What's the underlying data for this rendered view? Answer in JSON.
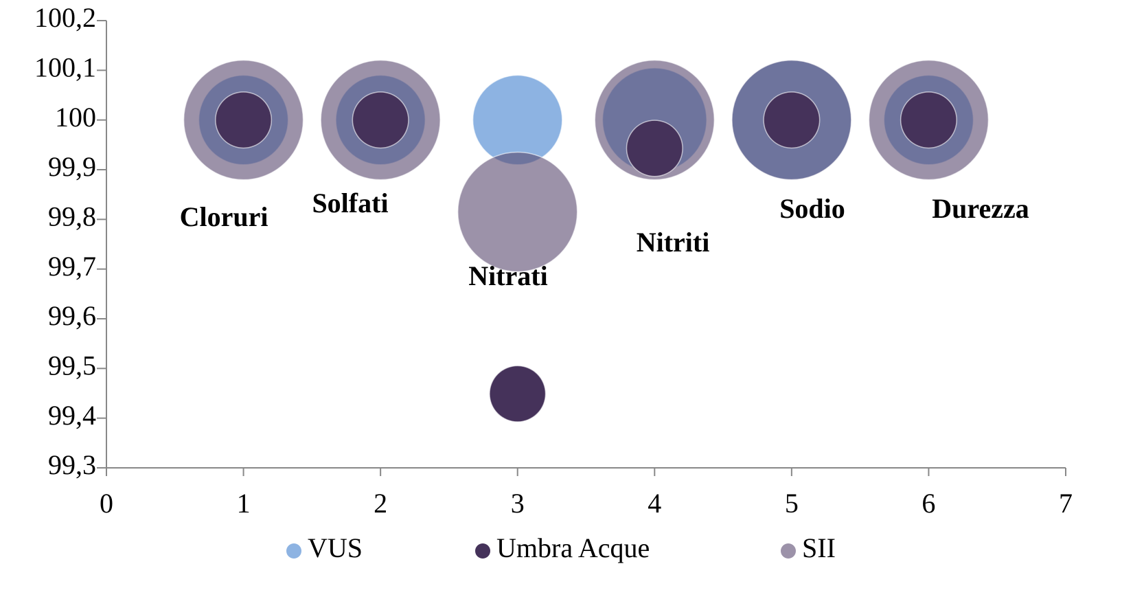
{
  "chart_data": {
    "type": "bubble",
    "xlim": [
      0,
      7
    ],
    "xticks": [
      0,
      1,
      2,
      3,
      4,
      5,
      6,
      7
    ],
    "ylim": [
      99.3,
      100.2
    ],
    "yticks": [
      {
        "value": 99.3,
        "label": "99,3"
      },
      {
        "value": 99.4,
        "label": "99,4"
      },
      {
        "value": 99.5,
        "label": "99,5"
      },
      {
        "value": 99.6,
        "label": "99,6"
      },
      {
        "value": 99.7,
        "label": "99,7"
      },
      {
        "value": 99.8,
        "label": "99,8"
      },
      {
        "value": 99.9,
        "label": "99,9"
      },
      100,
      {
        "value": 100.1,
        "label": "100,1"
      },
      {
        "value": 100.2,
        "label": "100,2"
      }
    ],
    "series": [
      {
        "name": "VUS",
        "color": "#8db3e2",
        "x": [
          1,
          2,
          3,
          4,
          5,
          6
        ],
        "values": [
          100,
          100,
          100,
          100,
          100,
          100
        ],
        "sizes": [
          56,
          56,
          56,
          76,
          100,
          56
        ]
      },
      {
        "name": "Umbra Acque",
        "color": "#45325a",
        "x": [
          1,
          2,
          3,
          4,
          5,
          6
        ],
        "values": [
          100,
          100,
          99.449,
          99.943,
          100,
          100
        ],
        "sizes": [
          22,
          22,
          22,
          22,
          22,
          22
        ]
      },
      {
        "name": "SII",
        "color": "#5a4a70",
        "opacity": 0.6,
        "x": [
          1,
          2,
          3,
          4,
          5,
          6
        ],
        "values": [
          100,
          100,
          99.815,
          100,
          100,
          100
        ],
        "sizes": [
          100,
          100,
          100,
          100,
          100,
          100
        ]
      }
    ],
    "labels": [
      "Cloruri",
      "Solfati",
      "Nitrati",
      "Nitriti",
      "Sodio",
      "Durezza"
    ],
    "legend": "bottom"
  }
}
